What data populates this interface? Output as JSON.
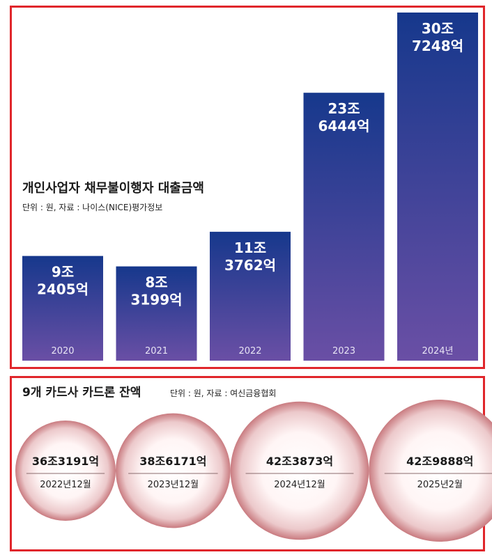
{
  "colors": {
    "border": "#e0262b",
    "bar_top": "#16388c",
    "bar_bottom": "#6a4fa5",
    "circle_outer": "#c97b80",
    "circle_inner": "#fff5f5"
  },
  "chart_data": [
    {
      "type": "bar",
      "title": "개인사업자 채무불이행자 대출금액",
      "subtitle": "단위 : 원, 자료 : 나이스(NICE)평가정보",
      "categories": [
        "2020",
        "2021",
        "2022",
        "2023",
        "2024년"
      ],
      "values": [
        92405,
        83199,
        113762,
        236444,
        307248
      ],
      "value_unit": "억원",
      "labels": [
        [
          "9조",
          "2405억"
        ],
        [
          "8조",
          "3199억"
        ],
        [
          "11조",
          "3762억"
        ],
        [
          "23조",
          "6444억"
        ],
        [
          "30조",
          "7248억"
        ]
      ],
      "grid": false,
      "legend": "none"
    },
    {
      "type": "bubble",
      "title": "9개 카드사 카드론 잔액",
      "subtitle": "단위 : 원, 자료 : 여신금융협회",
      "categories": [
        "2022년12월",
        "2023년12월",
        "2024년12월",
        "2025년2월"
      ],
      "values": [
        363191,
        386171,
        423873,
        429888
      ],
      "value_unit": "억원",
      "labels": [
        "36조3191억",
        "38조6171억",
        "42조3873억",
        "42조9888억"
      ],
      "legend": "none"
    }
  ]
}
